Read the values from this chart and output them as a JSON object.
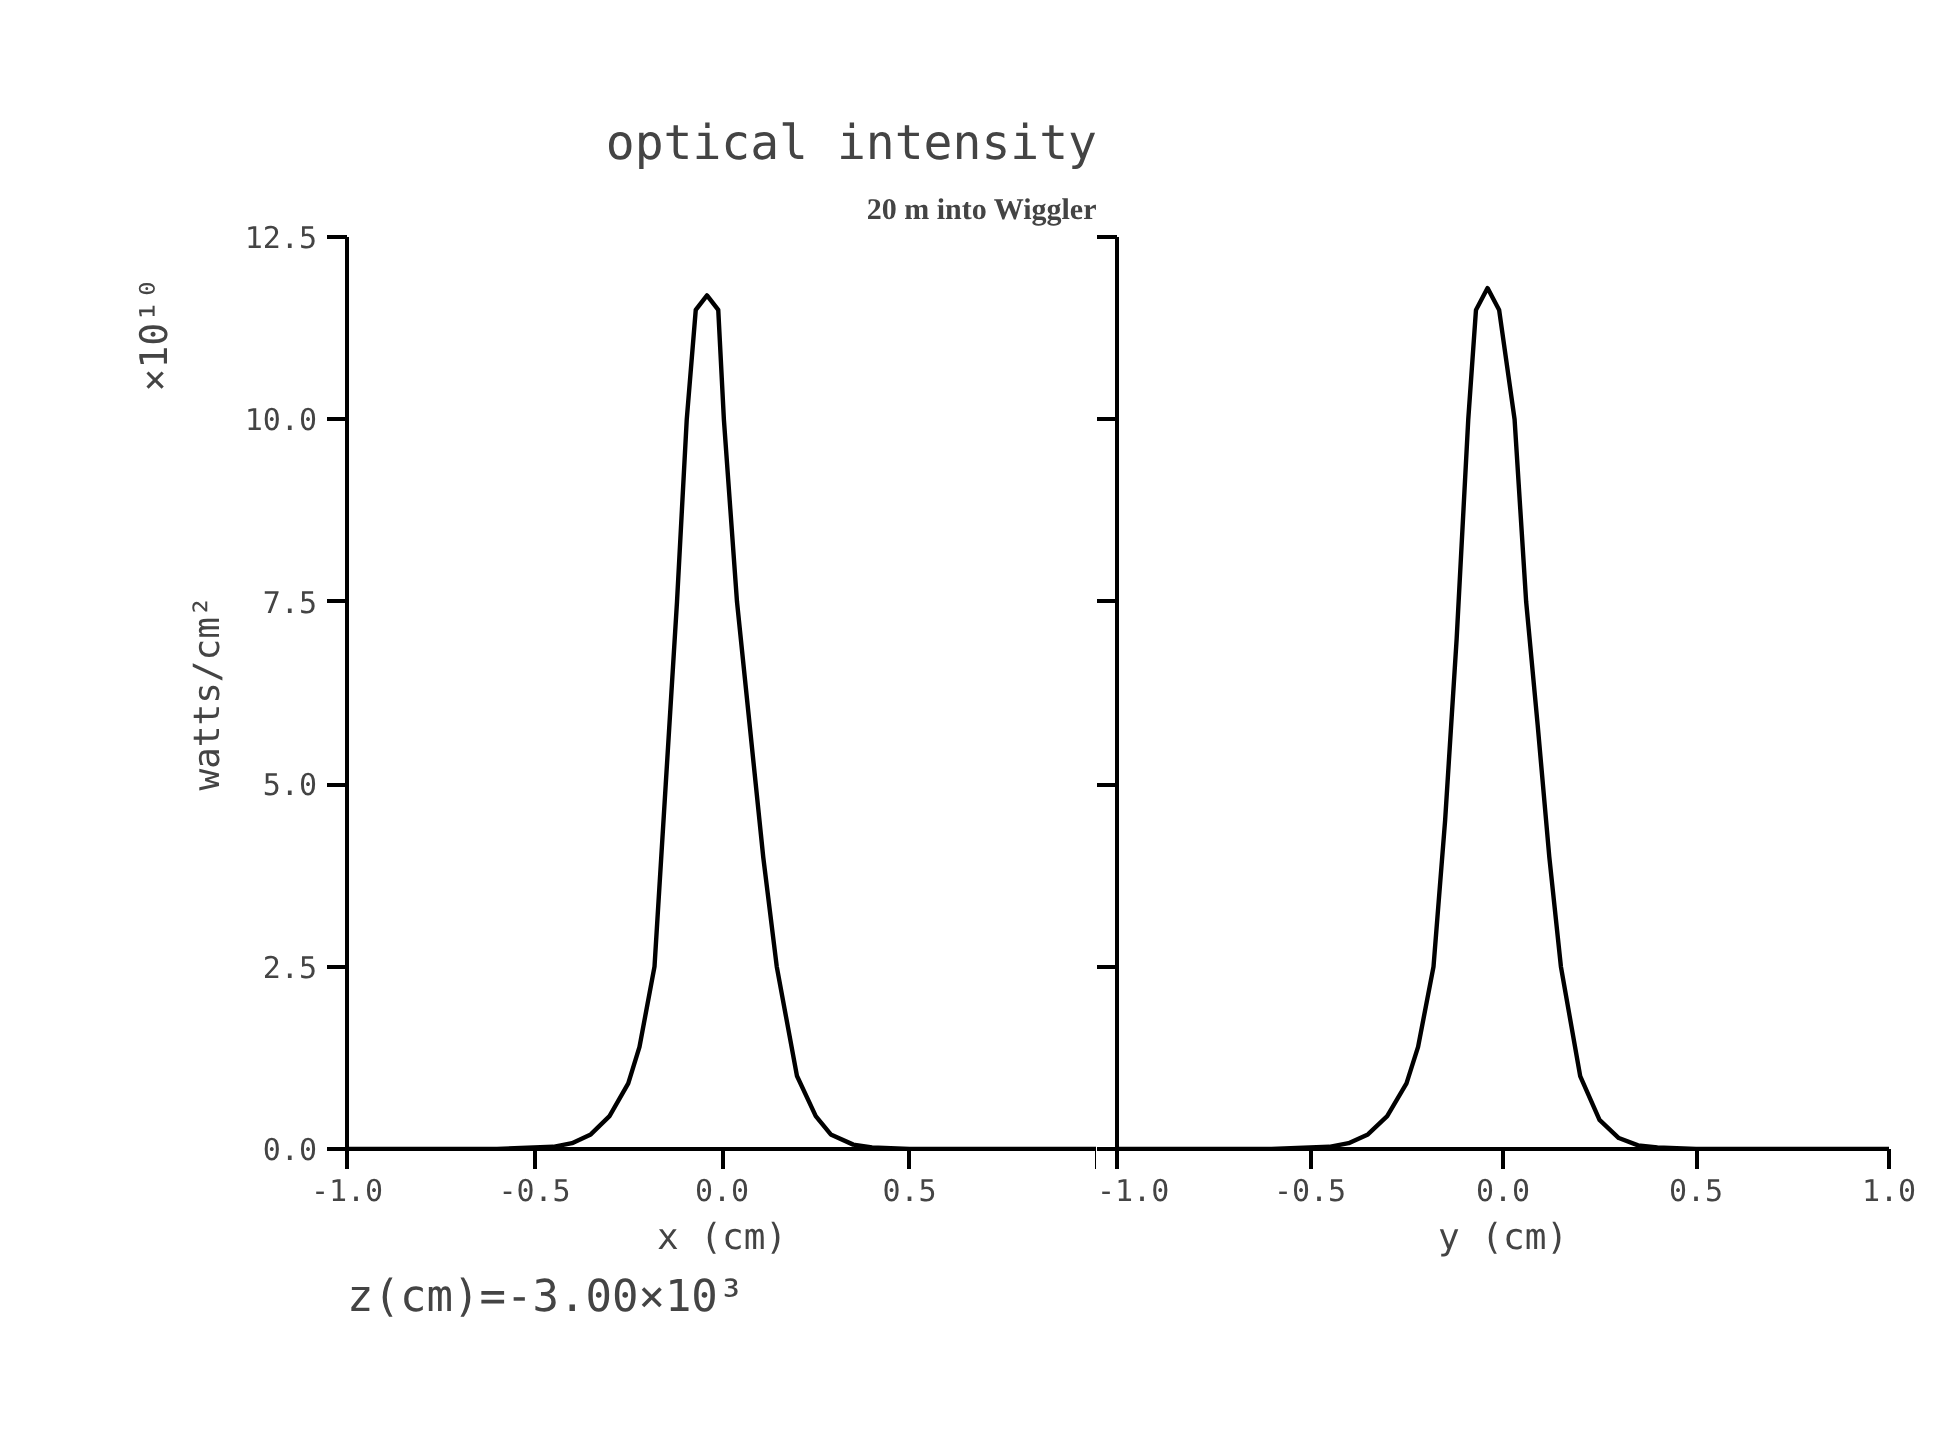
{
  "chart_data": [
    {
      "type": "line",
      "title": "optical intensity",
      "subtitle": "20 m into Wiggler",
      "xlabel": "x (cm)",
      "ylabel": "watts/cm²",
      "annotations": [
        "×10¹⁰",
        "z(cm)=-3.00×10³"
      ],
      "series": [
        {
          "color": "#000000",
          "x": [
            -1.0,
            -0.6,
            -0.45,
            -0.4,
            -0.35,
            -0.3,
            -0.25,
            -0.22,
            -0.18,
            -0.15,
            -0.12,
            -0.094,
            -0.07,
            -0.04,
            -0.01,
            0.005,
            0.04,
            0.07,
            0.11,
            0.146,
            0.2,
            0.25,
            0.29,
            0.35,
            0.4,
            0.5,
            1.0
          ],
          "values": [
            0,
            0,
            0.03,
            0.08,
            0.2,
            0.45,
            0.9,
            1.4,
            2.5,
            5.0,
            7.5,
            10.0,
            11.5,
            11.7,
            11.5,
            10.0,
            7.5,
            6.0,
            4.0,
            2.5,
            1.0,
            0.45,
            0.2,
            0.06,
            0.02,
            0,
            0
          ]
        }
      ],
      "xlim": [
        -1.0,
        1.0
      ],
      "xticks": [
        {
          "value": -1,
          "label": "-1.0"
        },
        {
          "value": -0.5,
          "label": "-0.5"
        },
        {
          "value": 0,
          "label": "0.0"
        },
        {
          "value": 0.5,
          "label": "0.5"
        },
        {
          "value": 1,
          "label": null
        }
      ],
      "ylim": [
        0,
        12.5
      ],
      "yticks": [
        {
          "value": 0,
          "label": "0.0"
        },
        {
          "value": 2.5,
          "label": "2.5"
        },
        {
          "value": 5,
          "label": "5.0"
        },
        {
          "value": 7.5,
          "label": "7.5"
        },
        {
          "value": 10,
          "label": "10.0"
        },
        {
          "value": 12.5,
          "label": "12.5"
        }
      ],
      "line_style": "solid",
      "marker": "none"
    },
    {
      "type": "line",
      "xlabel": "y (cm)",
      "series": [
        {
          "color": "#000000",
          "x": [
            -1.0,
            -0.6,
            -0.45,
            -0.4,
            -0.35,
            -0.3,
            -0.25,
            -0.22,
            -0.18,
            -0.15,
            -0.12,
            -0.09,
            -0.07,
            -0.04,
            -0.01,
            0.03,
            0.06,
            0.09,
            0.12,
            0.15,
            0.2,
            0.25,
            0.3,
            0.35,
            0.4,
            0.5,
            1.0
          ],
          "values": [
            0,
            0,
            0.03,
            0.08,
            0.2,
            0.45,
            0.9,
            1.4,
            2.5,
            4.5,
            7.0,
            10.0,
            11.5,
            11.8,
            11.5,
            10.0,
            7.5,
            5.8,
            4.0,
            2.5,
            1.0,
            0.4,
            0.15,
            0.05,
            0.02,
            0,
            0
          ]
        }
      ],
      "xlim": [
        -1.0,
        1.0
      ],
      "xticks": [
        {
          "value": -1,
          "label": "-1.0"
        },
        {
          "value": -0.5,
          "label": "-0.5"
        },
        {
          "value": 0,
          "label": "0.0"
        },
        {
          "value": 0.5,
          "label": "0.5"
        },
        {
          "value": 1,
          "label": "1.0"
        }
      ],
      "ylim": [
        0,
        12.5
      ],
      "yticks": [
        0.0,
        2.5,
        5.0,
        7.5,
        10.0,
        12.5
      ],
      "tick_labels": "x",
      "line_style": "solid",
      "marker": "none"
    }
  ]
}
